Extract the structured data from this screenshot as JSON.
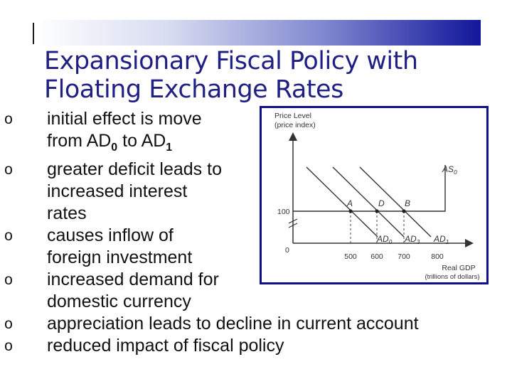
{
  "slide": {
    "title_line1": "Expansionary Fiscal Policy with",
    "title_line2": "Floating Exchange Rates",
    "bullet_marker": "o",
    "bullets": [
      {
        "lines": [
          {
            "text": "initial effect is move"
          },
          {
            "text": "from AD",
            "sub": "0",
            "text2": " to AD",
            "sub2": "1"
          }
        ]
      },
      {
        "lines": [
          {
            "text": "greater deficit leads to"
          },
          {
            "text": "increased interest"
          },
          {
            "text": "rates"
          }
        ]
      },
      {
        "lines": [
          {
            "text": "causes inflow of"
          },
          {
            "text": "foreign investment"
          }
        ]
      },
      {
        "lines": [
          {
            "text": "increased demand for"
          },
          {
            "text": "domestic currency"
          }
        ]
      },
      {
        "lines": [
          {
            "text": "appreciation leads to decline in current account"
          }
        ]
      },
      {
        "lines": [
          {
            "text": "reduced impact of fiscal policy"
          }
        ]
      }
    ],
    "colors": {
      "title": "#202084",
      "bar_dark": "#12169a",
      "chart_border": "#0f0f8c",
      "text": "#111111"
    }
  },
  "diagram": {
    "y_axis_label_1": "Price Level",
    "y_axis_label_2": "(price index)",
    "x_axis_label_1": "Real GDP",
    "x_axis_label_2": "(trillions of dollars)",
    "origin_label": "0",
    "price_level_value": "100",
    "as_curve_label": "AS",
    "as_curve_sub": "0",
    "x_ticks": [
      {
        "value": "500"
      },
      {
        "value": "600"
      },
      {
        "value": "700"
      },
      {
        "value": "800"
      }
    ],
    "points": [
      {
        "label": "A",
        "x": 500
      },
      {
        "label": "D",
        "x": 600
      },
      {
        "label": "B",
        "x": 700
      }
    ],
    "ad_curves": [
      {
        "label": "AD",
        "sub": "0",
        "x_at_100": 500
      },
      {
        "label": "AD",
        "sub": "3",
        "x_at_100": 600
      },
      {
        "label": "AD",
        "sub": "1",
        "x_at_100": 700
      }
    ]
  }
}
